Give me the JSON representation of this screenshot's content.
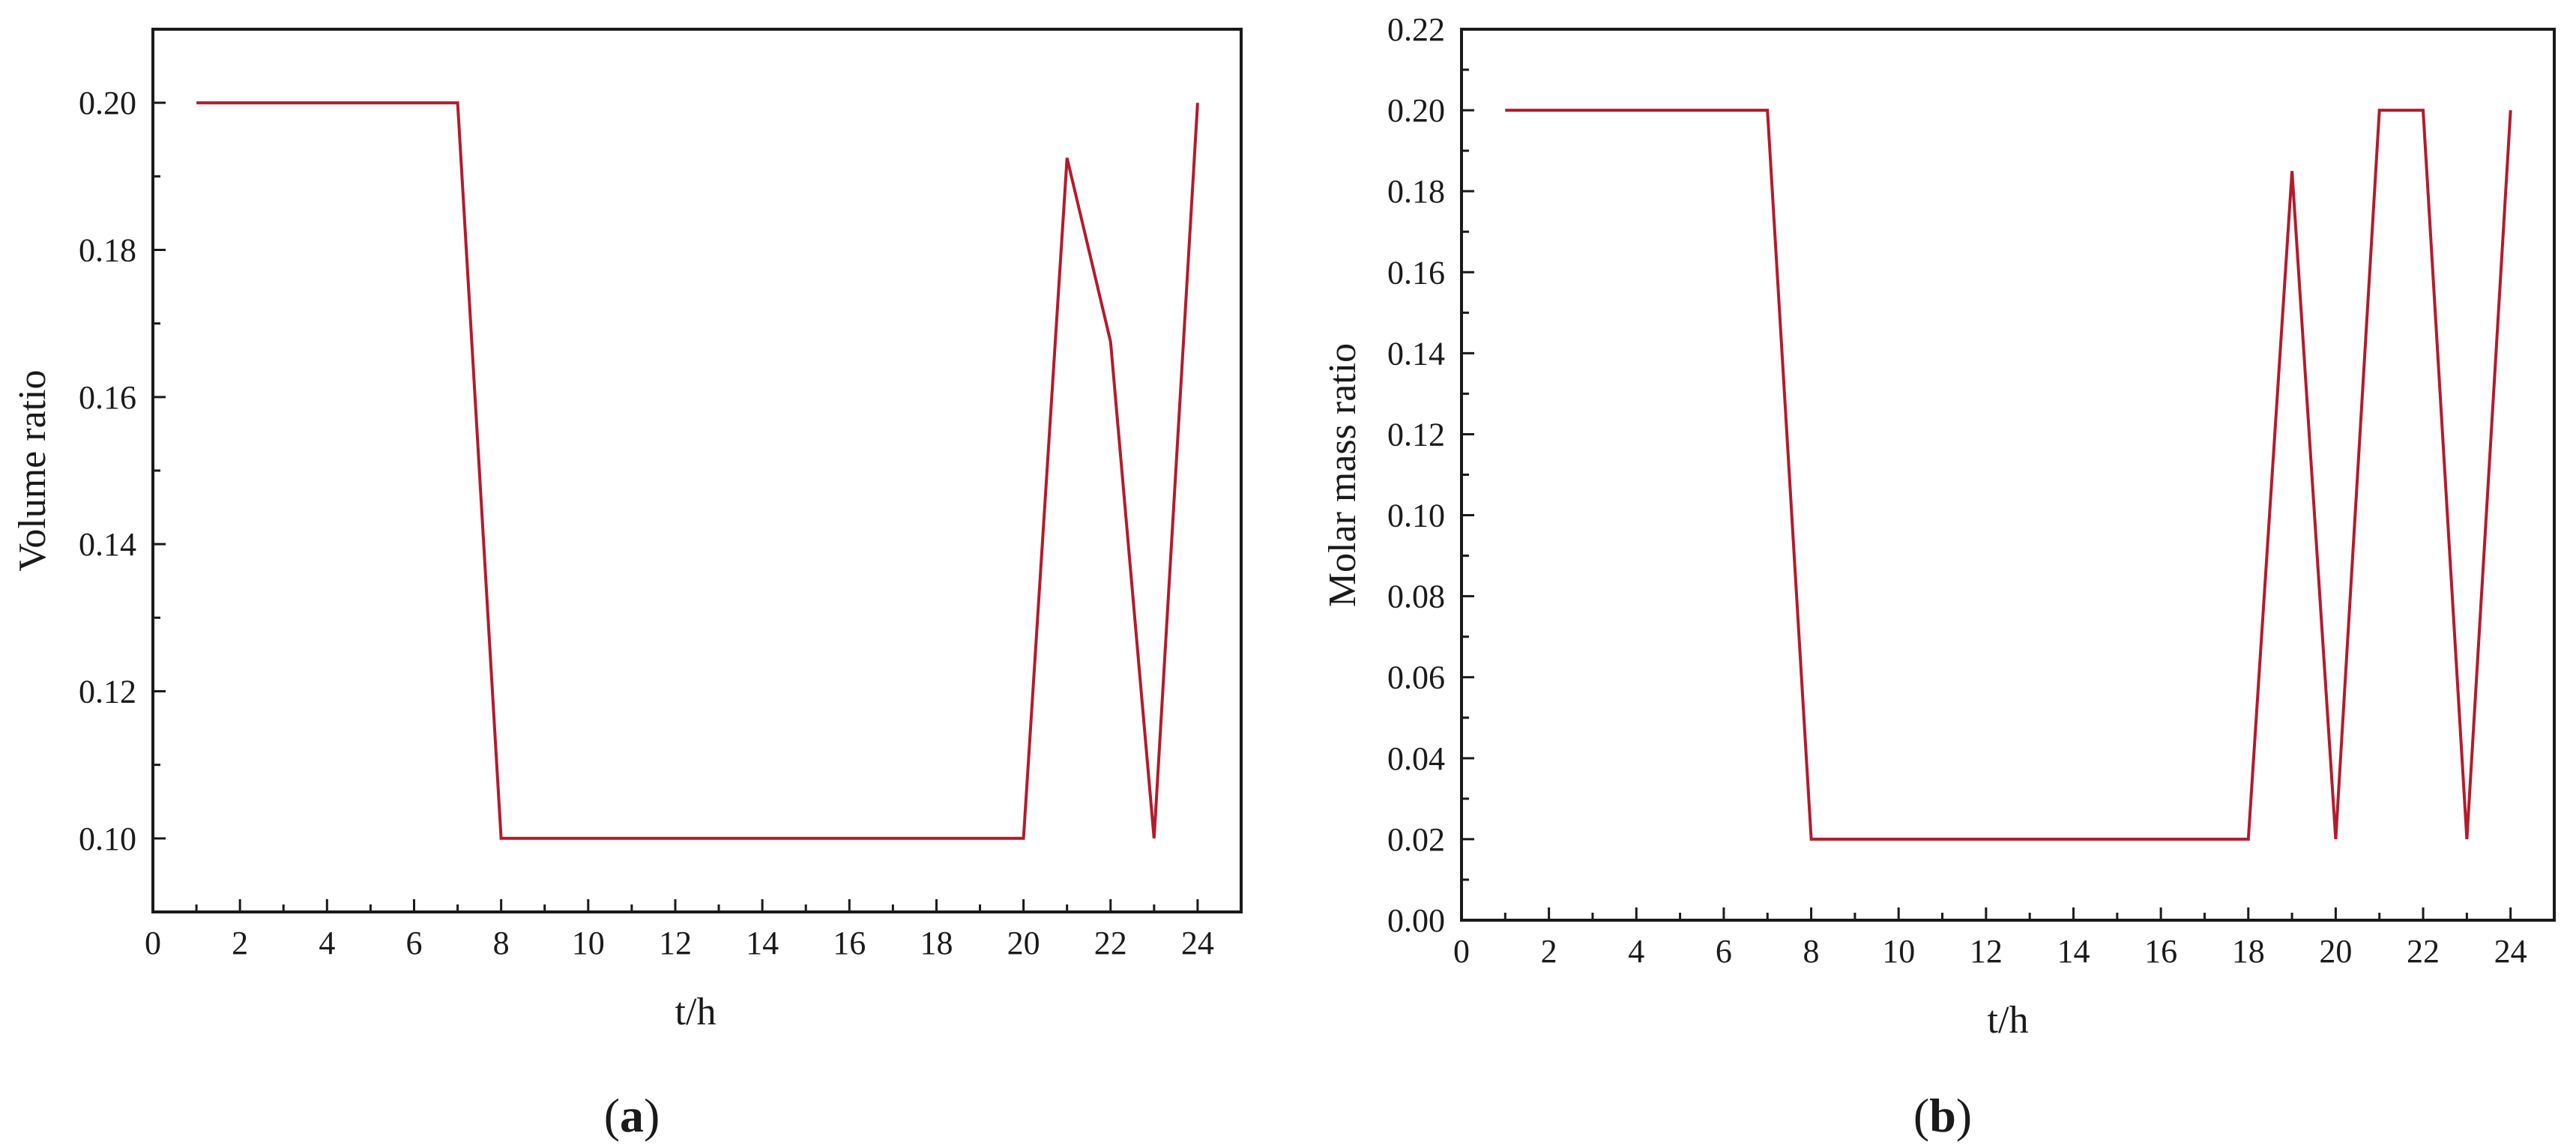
{
  "chart_data": [
    {
      "type": "line",
      "panel": "a",
      "xlabel": "t/h",
      "ylabel": "Volume ratio",
      "xlim": [
        0,
        25
      ],
      "ylim": [
        0.09,
        0.21
      ],
      "xticks": [
        0,
        2,
        4,
        6,
        8,
        10,
        12,
        14,
        16,
        18,
        20,
        22,
        24
      ],
      "xtick_labels": [
        "0",
        "2",
        "4",
        "6",
        "8",
        "10",
        "12",
        "14",
        "16",
        "18",
        "20",
        "22",
        "24"
      ],
      "yticks": [
        0.1,
        0.12,
        0.14,
        0.16,
        0.18,
        0.2
      ],
      "ytick_labels": [
        "0.10",
        "0.12",
        "0.14",
        "0.16",
        "0.18",
        "0.20"
      ],
      "grid": false,
      "series": [
        {
          "color": "#b31b2c",
          "x": [
            1,
            2,
            3,
            4,
            5,
            6,
            7,
            8,
            9,
            10,
            11,
            12,
            13,
            14,
            15,
            16,
            17,
            18,
            19,
            20,
            21,
            22,
            23,
            24
          ],
          "y": [
            0.2,
            0.2,
            0.2,
            0.2,
            0.2,
            0.2,
            0.2,
            0.1,
            0.1,
            0.1,
            0.1,
            0.1,
            0.1,
            0.1,
            0.1,
            0.1,
            0.1,
            0.1,
            0.1,
            0.1,
            0.1925,
            0.1675,
            0.1,
            0.2
          ]
        }
      ]
    },
    {
      "type": "line",
      "panel": "b",
      "xlabel": "t/h",
      "ylabel": "Molar mass ratio",
      "xlim": [
        0,
        25
      ],
      "ylim": [
        0.0,
        0.22
      ],
      "xticks": [
        0,
        2,
        4,
        6,
        8,
        10,
        12,
        14,
        16,
        18,
        20,
        22,
        24
      ],
      "xtick_labels": [
        "0",
        "2",
        "4",
        "6",
        "8",
        "10",
        "12",
        "14",
        "16",
        "18",
        "20",
        "22",
        "24"
      ],
      "yticks": [
        0.0,
        0.02,
        0.04,
        0.06,
        0.08,
        0.1,
        0.12,
        0.14,
        0.16,
        0.18,
        0.2,
        0.22
      ],
      "ytick_labels": [
        "0.00",
        "0.02",
        "0.04",
        "0.06",
        "0.08",
        "0.10",
        "0.12",
        "0.14",
        "0.16",
        "0.18",
        "0.20",
        "0.22"
      ],
      "grid": false,
      "series": [
        {
          "color": "#b31b2c",
          "x": [
            1,
            2,
            3,
            4,
            5,
            6,
            7,
            8,
            9,
            10,
            11,
            12,
            13,
            14,
            15,
            16,
            17,
            18,
            19,
            20,
            21,
            22,
            23,
            24
          ],
          "y": [
            0.2,
            0.2,
            0.2,
            0.2,
            0.2,
            0.2,
            0.2,
            0.02,
            0.02,
            0.02,
            0.02,
            0.02,
            0.02,
            0.02,
            0.02,
            0.02,
            0.02,
            0.02,
            0.185,
            0.02,
            0.2,
            0.2,
            0.02,
            0.2
          ]
        }
      ]
    }
  ],
  "panels": {
    "a": {
      "open": "(",
      "letter": "a",
      "close": ")"
    },
    "b": {
      "open": "(",
      "letter": "b",
      "close": ")"
    }
  }
}
